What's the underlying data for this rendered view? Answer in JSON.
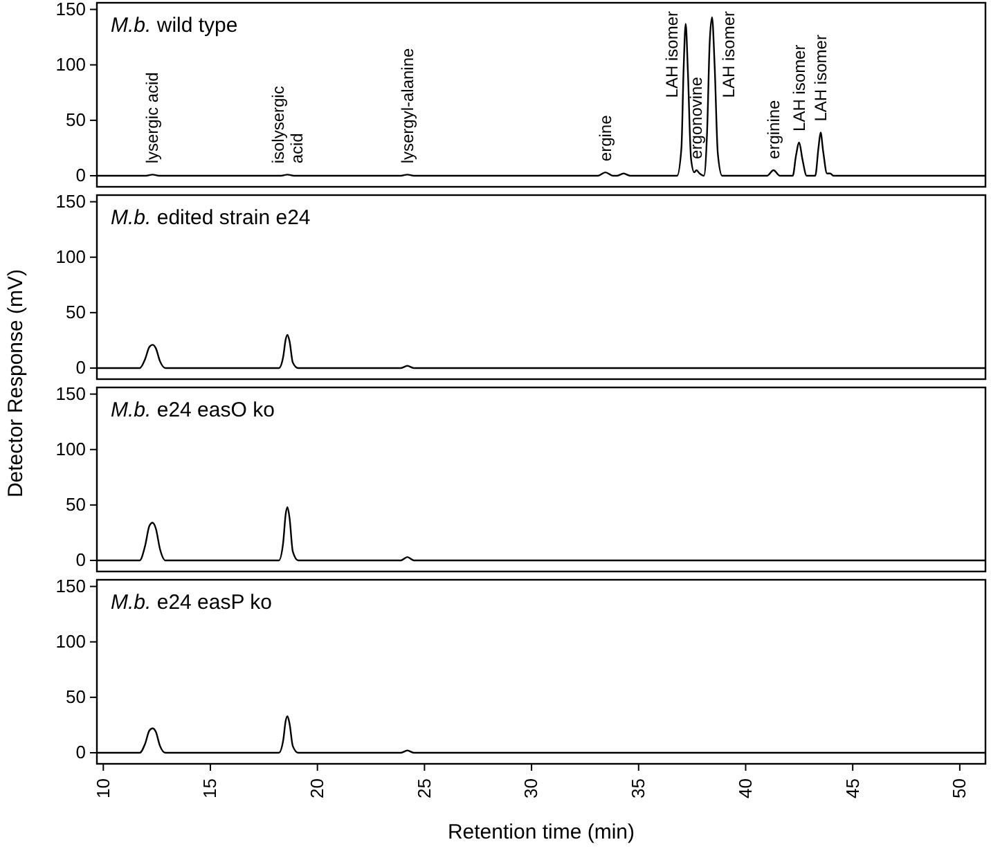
{
  "chart_data": [
    {
      "type": "line",
      "title": "M.b. wild type",
      "ylabel": "Detector Response (mV)",
      "xlim": [
        9.7,
        51.2
      ],
      "ylim": [
        -10,
        156
      ],
      "xticks": [
        10,
        15,
        20,
        25,
        30,
        35,
        40,
        45,
        50
      ],
      "yticks": [
        0,
        50,
        100,
        150
      ],
      "tick_labels": "y",
      "grid": false,
      "marker": "none",
      "line_style": "solid",
      "annotations": [
        {
          "text": "lysergic acid",
          "x": 12.3,
          "y": 1
        },
        {
          "text": "isolysergic\nacid",
          "x": 18.6,
          "y": 1
        },
        {
          "text": "lysergyl-alanine",
          "x": 24.2,
          "y": 1
        },
        {
          "text": "ergine",
          "x": 33.45,
          "y": 3
        },
        {
          "text": "LAH isomer",
          "x": 37.2,
          "y": 137
        },
        {
          "text": "ergonovine",
          "x": 37.7,
          "y": 5
        },
        {
          "text": "LAH isomer",
          "x": 38.43,
          "y": 143
        },
        {
          "text": "erginine",
          "x": 41.3,
          "y": 5
        },
        {
          "text": "LAH isomer",
          "x": 42.5,
          "y": 30
        },
        {
          "text": "LAH isomer",
          "x": 43.5,
          "y": 39
        }
      ],
      "series": [
        {
          "color": "#000000",
          "x": [
            9.7,
            12.0,
            12.3,
            12.6,
            18.3,
            18.6,
            18.9,
            23.9,
            24.2,
            24.5,
            33.1,
            33.45,
            33.8,
            34.0,
            34.3,
            34.6,
            36.8,
            37.0,
            37.1,
            37.2,
            37.3,
            37.45,
            37.6,
            37.7,
            37.85,
            38.05,
            38.2,
            38.32,
            38.43,
            38.55,
            38.7,
            38.9,
            41.0,
            41.3,
            41.6,
            42.2,
            42.35,
            42.5,
            42.65,
            42.85,
            43.25,
            43.4,
            43.5,
            43.62,
            43.8,
            43.95,
            44.1,
            51.2
          ],
          "values": [
            0,
            0,
            1,
            0,
            0,
            1,
            0,
            0,
            1,
            0,
            0,
            3,
            0,
            0,
            2,
            0,
            0,
            25,
            95,
            137,
            95,
            15,
            3,
            5,
            2,
            0,
            40,
            120,
            143,
            100,
            20,
            0,
            0,
            5,
            0,
            0,
            18,
            30,
            15,
            0,
            0,
            25,
            39,
            22,
            2,
            2,
            0,
            0
          ]
        }
      ]
    },
    {
      "type": "line",
      "title": "M.b. edited strain e24",
      "xlim": [
        9.7,
        51.2
      ],
      "ylim": [
        -10,
        156
      ],
      "xticks": [
        10,
        15,
        20,
        25,
        30,
        35,
        40,
        45,
        50
      ],
      "yticks": [
        0,
        50,
        100,
        150
      ],
      "tick_labels": "y",
      "grid": false,
      "marker": "none",
      "line_style": "solid",
      "series": [
        {
          "color": "#000000",
          "x": [
            9.7,
            11.7,
            11.95,
            12.15,
            12.3,
            12.45,
            12.65,
            12.9,
            18.2,
            18.4,
            18.52,
            18.6,
            18.7,
            18.85,
            19.1,
            23.9,
            24.2,
            24.5,
            51.2
          ],
          "values": [
            0,
            0,
            8,
            19,
            21,
            18,
            6,
            0,
            0,
            10,
            26,
            30,
            24,
            5,
            0,
            0,
            2,
            0,
            0
          ]
        }
      ]
    },
    {
      "type": "line",
      "title": "M.b. e24 easO ko",
      "xlim": [
        9.7,
        51.2
      ],
      "ylim": [
        -10,
        156
      ],
      "xticks": [
        10,
        15,
        20,
        25,
        30,
        35,
        40,
        45,
        50
      ],
      "yticks": [
        0,
        50,
        100,
        150
      ],
      "tick_labels": "y",
      "grid": false,
      "marker": "none",
      "line_style": "solid",
      "series": [
        {
          "color": "#000000",
          "x": [
            9.7,
            11.7,
            11.95,
            12.15,
            12.3,
            12.45,
            12.65,
            12.9,
            18.2,
            18.4,
            18.52,
            18.6,
            18.7,
            18.85,
            19.1,
            23.9,
            24.2,
            24.5,
            51.2
          ],
          "values": [
            0,
            0,
            13,
            31,
            34,
            29,
            10,
            0,
            0,
            16,
            42,
            48,
            38,
            8,
            0,
            0,
            3,
            0,
            0
          ]
        }
      ]
    },
    {
      "type": "line",
      "title": "M.b. e24 easP ko",
      "xlabel": "Retention time (min)",
      "xlim": [
        9.7,
        51.2
      ],
      "ylim": [
        -10,
        156
      ],
      "xticks": [
        10,
        15,
        20,
        25,
        30,
        35,
        40,
        45,
        50
      ],
      "yticks": [
        0,
        50,
        100,
        150
      ],
      "grid": false,
      "marker": "none",
      "line_style": "solid",
      "series": [
        {
          "color": "#000000",
          "x": [
            9.7,
            11.7,
            11.95,
            12.15,
            12.3,
            12.45,
            12.65,
            12.9,
            18.2,
            18.4,
            18.52,
            18.6,
            18.7,
            18.85,
            19.1,
            23.9,
            24.2,
            24.5,
            51.2
          ],
          "values": [
            0,
            0,
            8,
            20,
            22,
            19,
            6,
            0,
            0,
            11,
            29,
            33,
            26,
            6,
            0,
            0,
            2,
            0,
            0
          ]
        }
      ]
    }
  ]
}
